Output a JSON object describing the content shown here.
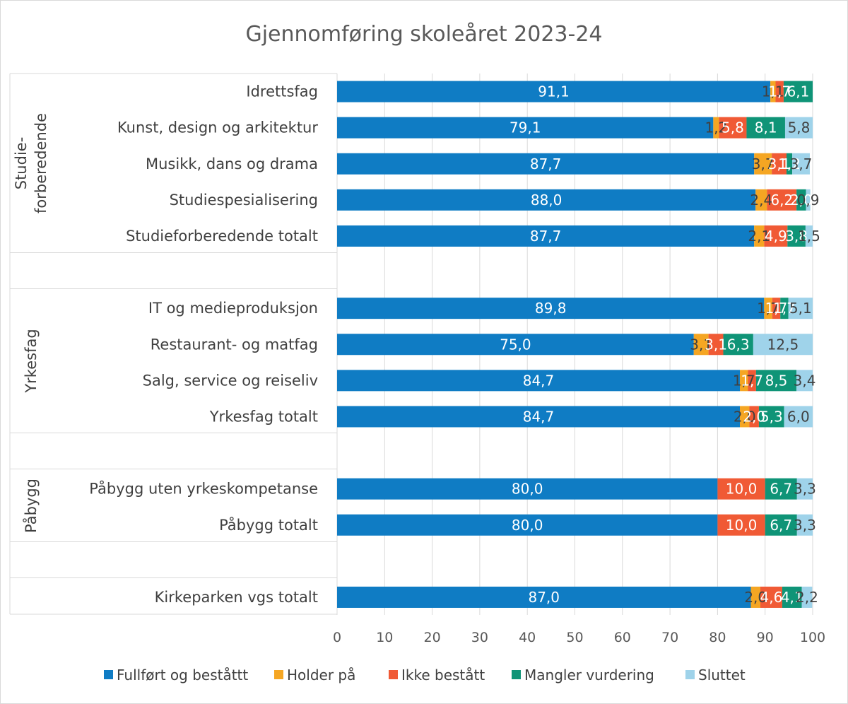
{
  "chart_data": {
    "type": "bar",
    "orientation": "horizontal",
    "stacked": true,
    "title": "Gjennomføring skoleåret 2023-24",
    "xlim": [
      0,
      100
    ],
    "x_ticks": [
      "0",
      "10",
      "20",
      "30",
      "40",
      "50",
      "60",
      "70",
      "80",
      "90",
      "100"
    ],
    "grid": "vertical gridlines",
    "legend_position": "bottom",
    "series": [
      {
        "name": "Fullført og beståttt",
        "color": "#0f7cc4"
      },
      {
        "name": "Holder på",
        "color": "#f5a623"
      },
      {
        "name": "Ikke bestått",
        "color": "#f05a35"
      },
      {
        "name": "Mangler vurdering",
        "color": "#0f9477"
      },
      {
        "name": "Sluttet",
        "color": "#9fd3ea"
      }
    ],
    "groups": [
      {
        "label": "Studie-\nforberedende",
        "label_lines": [
          "Studie-",
          "forberedende"
        ]
      },
      {
        "label": "Yrkesfag",
        "label_lines": [
          "Yrkesfag"
        ]
      },
      {
        "label": "Påbygg",
        "label_lines": [
          "Påbygg"
        ]
      },
      {
        "label": "",
        "label_lines": []
      }
    ],
    "rows": [
      {
        "category": "Idrettsfag",
        "group": 0,
        "values": [
          91.1,
          1.1,
          1.7,
          6.1,
          0
        ],
        "labels": [
          "91,1",
          "1,1",
          "1,7",
          "6,1",
          ""
        ]
      },
      {
        "category": "Kunst, design og arkitektur",
        "group": 0,
        "values": [
          79.1,
          1.2,
          5.8,
          8.1,
          5.8
        ],
        "labels": [
          "79,1",
          "1,2",
          "5,8",
          "8,1",
          "5,8"
        ]
      },
      {
        "category": "Musikk, dans og drama",
        "group": 0,
        "values": [
          87.7,
          3.7,
          3.1,
          1.2,
          3.7
        ],
        "labels": [
          "87,7",
          "3,7",
          "3,1",
          "1,2",
          "3,7"
        ]
      },
      {
        "category": "Studiespesialisering",
        "group": 0,
        "values": [
          88.0,
          2.4,
          6.2,
          2.0,
          0.9
        ],
        "labels": [
          "88,0",
          "2,4",
          "6,2",
          "2,0",
          "0,9"
        ]
      },
      {
        "category": "Studieforberedende totalt",
        "group": 0,
        "values": [
          87.7,
          2.1,
          4.9,
          3.8,
          1.5
        ],
        "labels": [
          "87,7",
          "2,1",
          "4,9",
          "3,8",
          "1,5"
        ]
      },
      {
        "category": "IT og medieproduksjon",
        "group": 1,
        "values": [
          89.8,
          1.7,
          1.7,
          1.7,
          5.1
        ],
        "labels": [
          "89,8",
          "1,7",
          "1,7",
          "1,7",
          "5,1"
        ]
      },
      {
        "category": "Restaurant- og matfag",
        "group": 1,
        "values": [
          75.0,
          3.1,
          3.1,
          6.3,
          12.5
        ],
        "labels": [
          "75,0",
          "3,1",
          "3,1",
          "6,3",
          "12,5"
        ]
      },
      {
        "category": "Salg, service og reiseliv",
        "group": 1,
        "values": [
          84.7,
          1.7,
          1.7,
          8.5,
          3.4
        ],
        "labels": [
          "84,7",
          "1,7",
          "1,7",
          "8,5",
          "3,4"
        ]
      },
      {
        "category": "Yrkesfag totalt",
        "group": 1,
        "values": [
          84.7,
          2.0,
          2.0,
          5.3,
          6.0
        ],
        "labels": [
          "84,7",
          "2,0",
          "2,0",
          "5,3",
          "6,0"
        ]
      },
      {
        "category": "Påbygg uten yrkeskompetanse",
        "group": 2,
        "values": [
          80.0,
          0,
          10.0,
          6.7,
          3.3
        ],
        "labels": [
          "80,0",
          "",
          "10,0",
          "6,7",
          "3,3"
        ]
      },
      {
        "category": "Påbygg totalt",
        "group": 2,
        "values": [
          80.0,
          0,
          10.0,
          6.7,
          3.3
        ],
        "labels": [
          "80,0",
          "",
          "10,0",
          "6,7",
          "3,3"
        ]
      },
      {
        "category": "Kirkeparken vgs totalt",
        "group": 3,
        "values": [
          87.0,
          2.0,
          4.6,
          4.1,
          2.2
        ],
        "labels": [
          "87,0",
          "2,0",
          "4,6",
          "4,1",
          "2,2"
        ]
      }
    ]
  }
}
